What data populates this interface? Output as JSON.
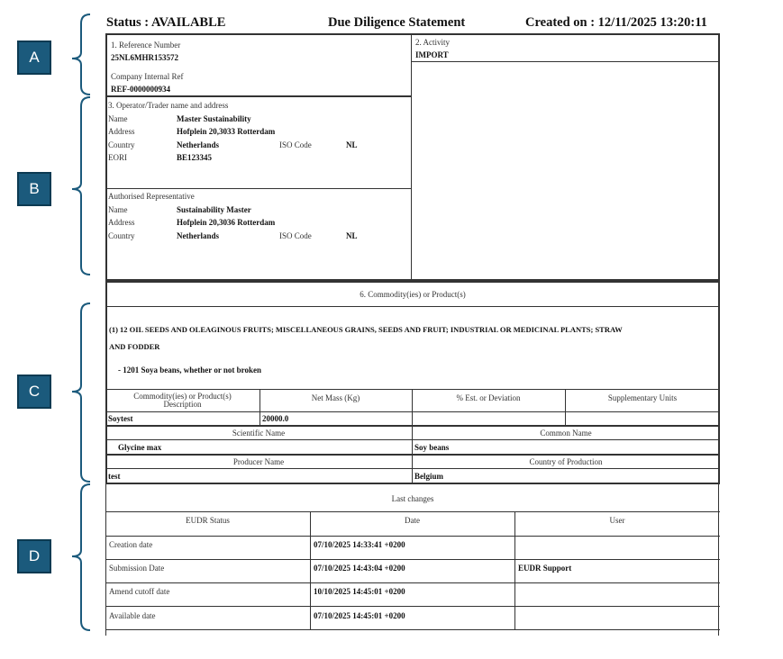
{
  "annotations": {
    "a": "A",
    "b": "B",
    "c": "C",
    "d": "D",
    "color": "#1b5a7c"
  },
  "header": {
    "status": "Status : AVAILABLE",
    "title": "Due Diligence Statement",
    "created": "Created on : 12/11/2025 13:20:11"
  },
  "reference": {
    "label": "1. Reference Number",
    "value": "25NL6MHR153572",
    "internal_label": "Company Internal Ref",
    "internal_value": "REF-0000000934"
  },
  "activity": {
    "label": "2. Activity",
    "value": "IMPORT"
  },
  "operator": {
    "title": "3. Operator/Trader name and address",
    "name_label": "Name",
    "name": "Master Sustainability",
    "address_label": "Address",
    "address": "Hofplein 20,3033 Rotterdam",
    "country_label": "Country",
    "country": "Netherlands",
    "iso_label": "ISO Code",
    "iso": "NL",
    "eori_label": "EORI",
    "eori": "BE123345"
  },
  "representative": {
    "title": "Authorised Representative",
    "name_label": "Name",
    "name": "Sustainability Master",
    "address_label": "Address",
    "address": "Hofplein 20,3036 Rotterdam",
    "country_label": "Country",
    "country": "Netherlands",
    "iso_label": "ISO Code",
    "iso": "NL"
  },
  "commodity": {
    "title": "6. Commodity(ies) or Product(s)",
    "heading_line1": "(1) 12  OIL SEEDS AND OLEAGINOUS FRUITS; MISCELLANEOUS GRAINS, SEEDS AND FRUIT; INDUSTRIAL OR MEDICINAL PLANTS; STRAW",
    "heading_line2": "AND FODDER",
    "sub": "- 1201  Soya beans, whether or not broken",
    "columns": [
      "Commodity(ies) or Product(s) Description",
      "Net Mass (Kg)",
      "% Est. or Deviation",
      "Supplementary Units"
    ],
    "values": [
      "Soytest",
      "20000.0",
      "",
      ""
    ],
    "scientific_label": "Scientific Name",
    "scientific": "Glycine max",
    "common_label": "Common Name",
    "common": "Soy beans",
    "producer_label": "Producer Name",
    "producer": "test",
    "country_label": "Country of Production",
    "country": "Belgium"
  },
  "last_changes": {
    "title": "Last changes",
    "columns": [
      "EUDR Status",
      "Date",
      "User"
    ],
    "rows": [
      {
        "status": "Creation date",
        "date": "07/10/2025 14:33:41 +0200",
        "user": ""
      },
      {
        "status": "Submission Date",
        "date": "07/10/2025 14:43:04 +0200",
        "user": "EUDR Support"
      },
      {
        "status": "Amend cutoff date",
        "date": "10/10/2025 14:45:01 +0200",
        "user": ""
      },
      {
        "status": "Available date",
        "date": "07/10/2025 14:45:01 +0200",
        "user": ""
      }
    ]
  }
}
